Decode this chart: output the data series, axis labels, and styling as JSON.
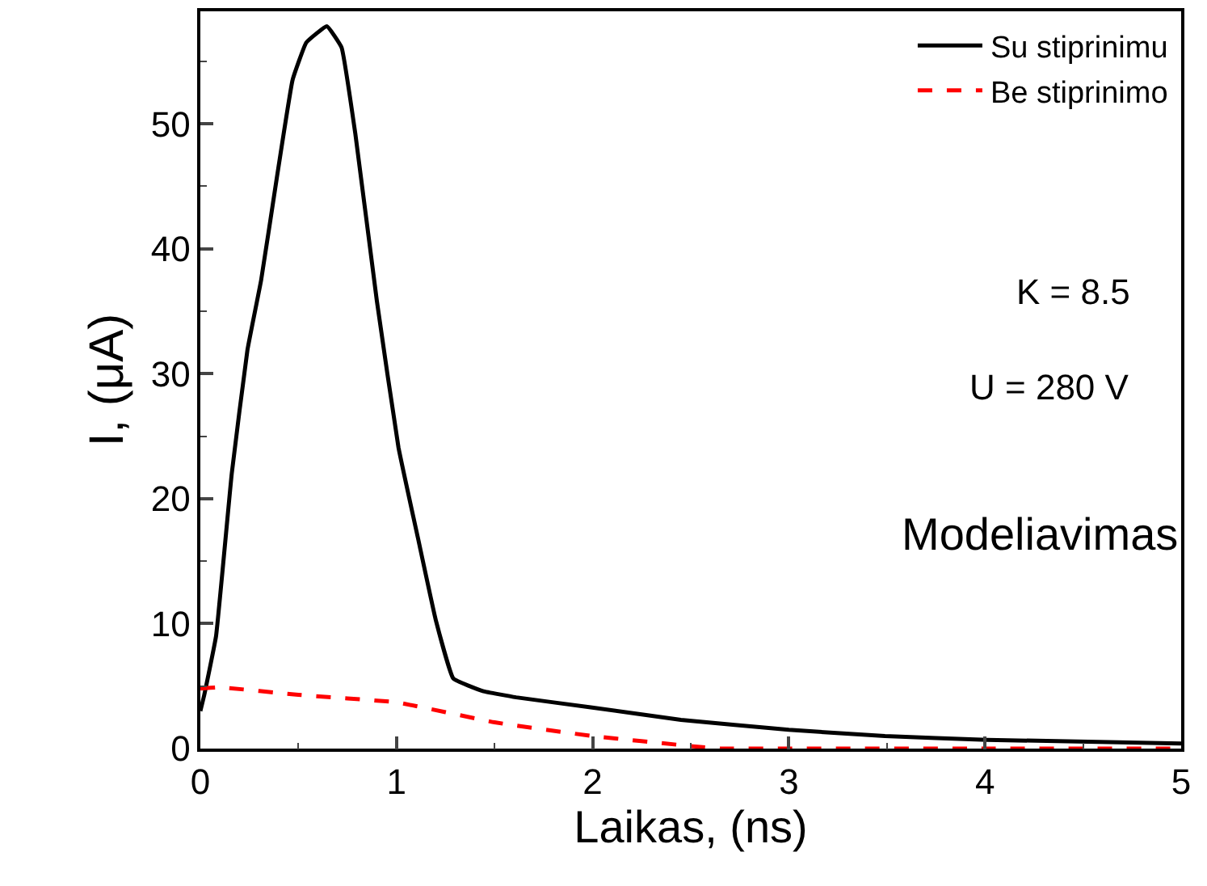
{
  "chart_data": {
    "type": "line",
    "xlabel": "Laikas, (ns)",
    "ylabel": "I, (μA)",
    "xlim": [
      0,
      5
    ],
    "xticks": [
      0,
      1,
      2,
      3,
      4,
      5
    ],
    "ylim": [
      0,
      59
    ],
    "yticks": [
      0,
      10,
      20,
      30,
      40,
      50
    ],
    "legend": "top right",
    "marker": "none",
    "series": [
      {
        "name": "Su stiprinimu",
        "color": "#000000",
        "line_style": "solid",
        "x": [
          0,
          0.02,
          0.08,
          0.16,
          0.24,
          0.31,
          0.39,
          0.47,
          0.54,
          0.645,
          0.72,
          0.79,
          0.9,
          1.01,
          1.11,
          1.2,
          1.29,
          1.44,
          1.61,
          1.99,
          2.45,
          3.0,
          3.49,
          4.01,
          5
        ],
        "values": [
          3,
          4.3,
          9,
          22,
          31.9,
          37.5,
          45.7,
          53.5,
          56.5,
          57.8,
          56.1,
          49.2,
          35.8,
          24.1,
          16.8,
          10.3,
          5.6,
          4.6,
          4.1,
          3.3,
          2.3,
          1.5,
          1.0,
          0.7,
          0.4
        ]
      },
      {
        "name": "Be stiprinimo",
        "color": "#ff0000",
        "line_style": "dashed",
        "x": [
          0,
          0.1,
          0.5,
          1,
          1.5,
          2,
          2.5,
          2.65,
          3,
          4,
          5
        ],
        "values": [
          4.8,
          4.9,
          4.3,
          3.7,
          2.1,
          1.0,
          0.2,
          0,
          0,
          0,
          0
        ]
      }
    ],
    "annotations": [
      "K = 8.5",
      "U = 280 V",
      "Modeliavimas"
    ]
  }
}
